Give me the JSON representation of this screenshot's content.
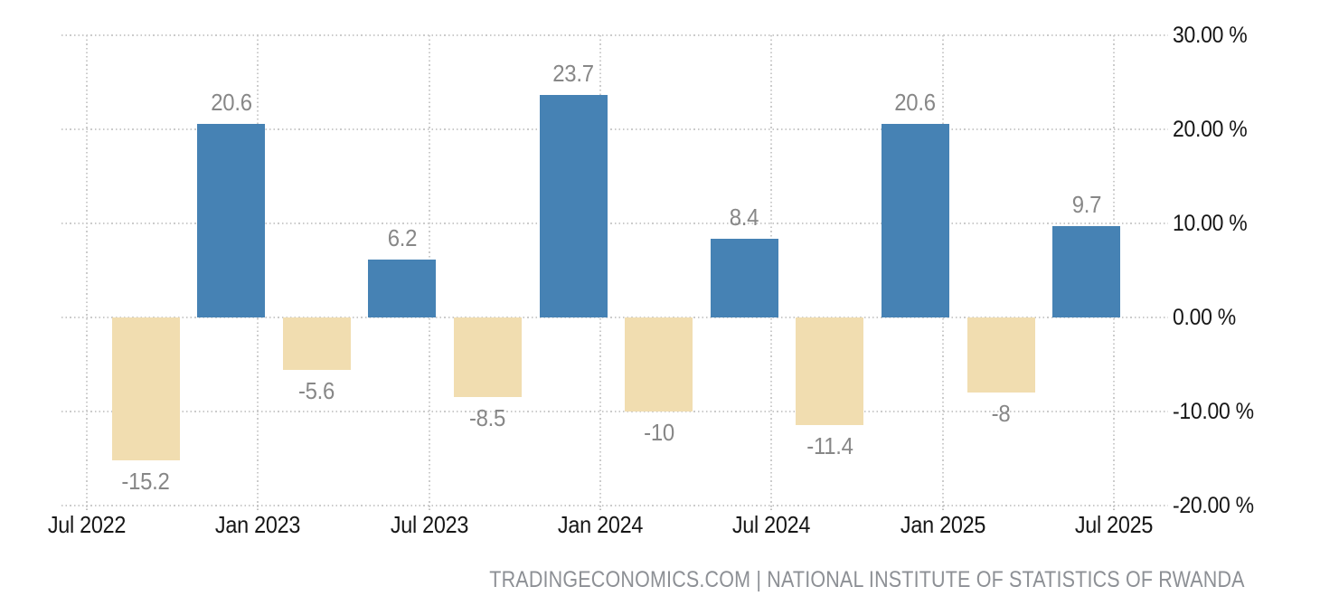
{
  "chart_data": {
    "type": "bar",
    "title": "",
    "values": [
      -15.2,
      20.6,
      -5.6,
      6.2,
      -8.5,
      23.7,
      -10,
      8.4,
      -11.4,
      20.6,
      -8,
      9.7
    ],
    "bar_labels": [
      "-15.2",
      "20.6",
      "-5.6",
      "6.2",
      "-8.5",
      "23.7",
      "-10",
      "8.4",
      "-11.4",
      "20.6",
      "-8",
      "9.7"
    ],
    "x_tick_labels": [
      "Jul 2022",
      "Jan 2023",
      "Jul 2023",
      "Jan 2024",
      "Jul 2024",
      "Jan 2025",
      "Jul 2025"
    ],
    "y_ticks": [
      30,
      20,
      10,
      0,
      -10,
      -20
    ],
    "y_tick_labels": [
      "30.00 %",
      "20.00 %",
      "10.00 %",
      "0.00 %",
      "-10.00 %",
      "-20.00 %"
    ],
    "ylim": [
      -20,
      30
    ],
    "grid": true,
    "legend_position": "none",
    "colors": {
      "positive_bar": "#4682b4",
      "negative_bar": "#f1ddb0",
      "gridline": "#cbcbcb",
      "axis_text": "#161616",
      "value_text": "#878787"
    }
  },
  "footer": {
    "attribution": "TRADINGECONOMICS.COM | NATIONAL INSTITUTE OF STATISTICS OF RWANDA"
  }
}
